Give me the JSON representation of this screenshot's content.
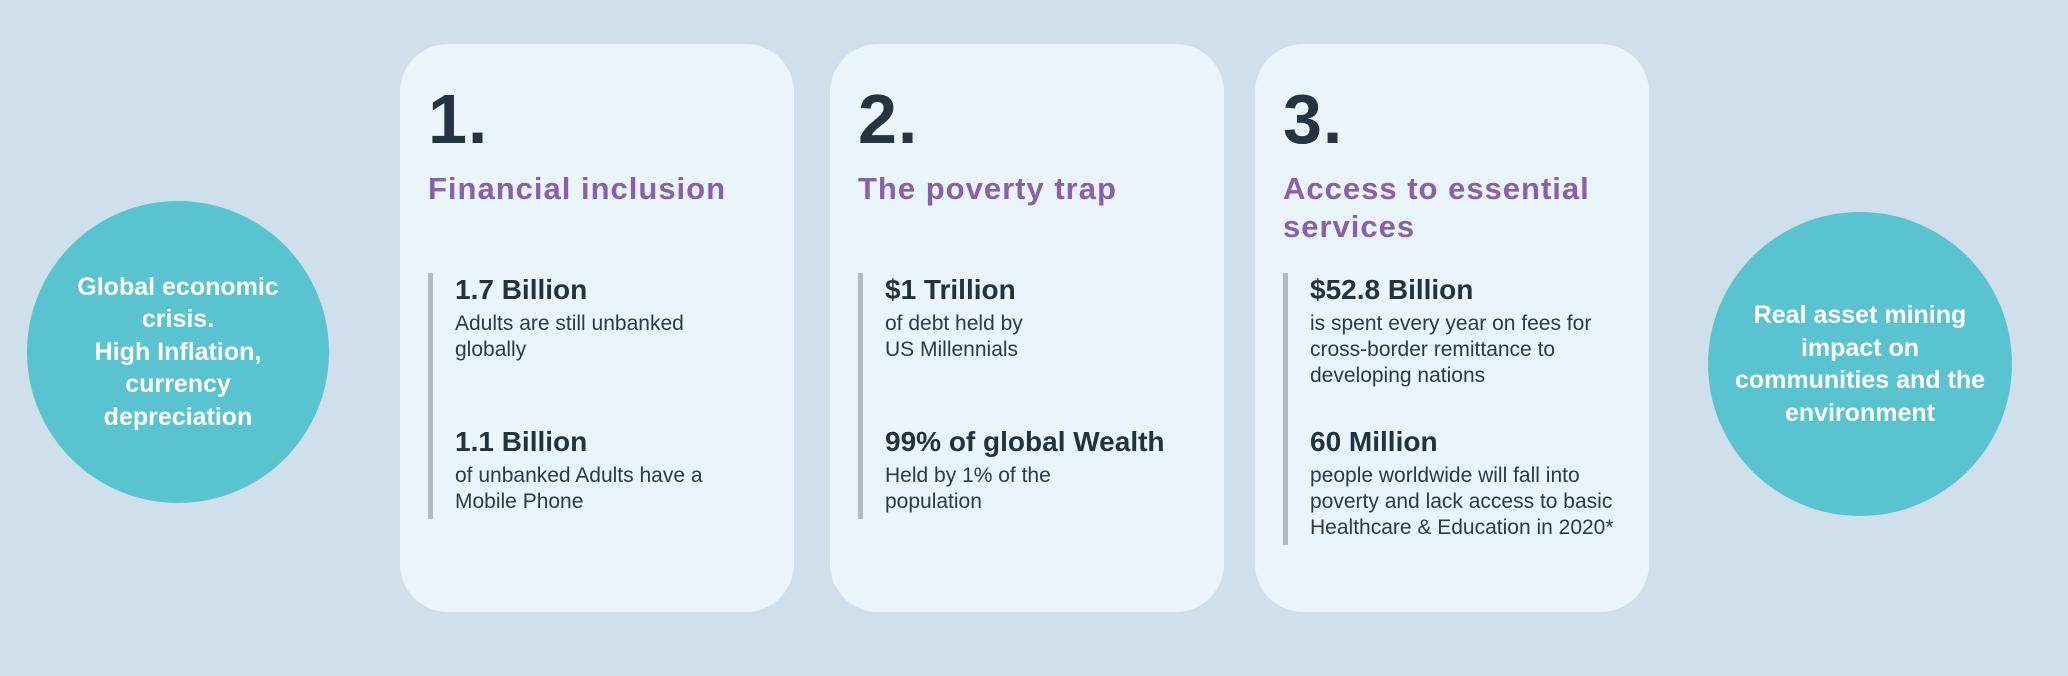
{
  "colors": {
    "background": "#cfe0ec",
    "card_background": "#eaf4fb",
    "circle_teal": "#59c4cf",
    "heading_purple": "#8b60aa",
    "text_dark": "#243442",
    "accent_bar_gray": "#b3bac0"
  },
  "left_circle": {
    "text": "Global economic\ncrisis.\nHigh Inflation,\ncurrency\ndepreciation"
  },
  "right_circle": {
    "text": "Real asset  mining\nimpact on\ncommunities and the\nenvironment"
  },
  "cards": [
    {
      "number": "1.",
      "title": "Financial inclusion",
      "stats": [
        {
          "value": "1.7 Billion",
          "desc": "Adults are still unbanked\nglobally"
        },
        {
          "value": "1.1 Billion",
          "desc": "of unbanked Adults have a\nMobile Phone"
        }
      ]
    },
    {
      "number": "2.",
      "title": "The poverty trap",
      "stats": [
        {
          "value": "$1 Trillion",
          "desc": "of debt held by\nUS Millennials"
        },
        {
          "value": "99% of global Wealth",
          "desc": "Held by 1% of the\npopulation"
        }
      ]
    },
    {
      "number": "3.",
      "title": "Access to essential\nservices",
      "stats": [
        {
          "value": "$52.8 Billion",
          "desc": "is spent every year on fees for\ncross-border remittance to\ndeveloping nations"
        },
        {
          "value": "60 Million",
          "desc": "people worldwide will fall into\npoverty and lack access to basic\nHealthcare & Education in 2020*"
        }
      ]
    }
  ]
}
